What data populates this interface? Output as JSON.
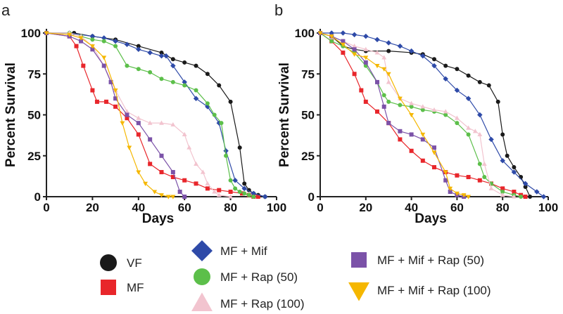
{
  "panels": [
    {
      "label": "a",
      "chart_data": {
        "type": "line",
        "xlabel": "Days",
        "ylabel": "Percent Survival",
        "xlim": [
          0,
          100
        ],
        "ylim": [
          0,
          100
        ],
        "xticks": [
          0,
          20,
          40,
          60,
          80,
          100
        ],
        "yticks": [
          0,
          25,
          50,
          75,
          100
        ],
        "series": [
          {
            "name": "VF",
            "x": [
              0,
              12,
              20,
              30,
              40,
              50,
              55,
              60,
              65,
              70,
              75,
              80,
              84,
              86,
              88,
              90,
              92,
              95
            ],
            "y": [
              100,
              100,
              98,
              96,
              92,
              88,
              84,
              82,
              80,
              75,
              68,
              58,
              30,
              8,
              4,
              2,
              1,
              0
            ]
          },
          {
            "name": "MF",
            "x": [
              0,
              10,
              13,
              16,
              20,
              22,
              26,
              30,
              35,
              40,
              45,
              50,
              55,
              60,
              65,
              70,
              75,
              80,
              85,
              88,
              90,
              92
            ],
            "y": [
              100,
              98,
              92,
              80,
              65,
              58,
              58,
              55,
              48,
              38,
              20,
              15,
              12,
              10,
              8,
              5,
              4,
              3,
              2,
              1,
              0,
              0
            ]
          },
          {
            "name": "MF + Mif",
            "x": [
              0,
              10,
              20,
              25,
              30,
              35,
              40,
              45,
              50,
              52,
              55,
              60,
              65,
              70,
              75,
              78,
              82,
              86,
              90,
              95
            ],
            "y": [
              100,
              100,
              98,
              97,
              95,
              93,
              90,
              88,
              86,
              86,
              80,
              70,
              60,
              55,
              45,
              28,
              10,
              5,
              2,
              0
            ]
          },
          {
            "name": "MF + Rap (50)",
            "x": [
              0,
              10,
              15,
              20,
              25,
              30,
              35,
              40,
              45,
              50,
              55,
              60,
              65,
              70,
              73,
              76,
              78,
              80,
              82,
              84,
              86,
              88,
              90
            ],
            "y": [
              100,
              100,
              98,
              96,
              95,
              92,
              80,
              78,
              76,
              72,
              70,
              68,
              65,
              57,
              50,
              45,
              25,
              10,
              5,
              3,
              2,
              1,
              0
            ]
          },
          {
            "name": "MF + Rap (100)",
            "x": [
              0,
              10,
              15,
              20,
              25,
              30,
              35,
              40,
              45,
              50,
              55,
              60,
              62,
              65,
              68,
              70,
              73,
              75,
              80
            ],
            "y": [
              100,
              100,
              98,
              92,
              80,
              65,
              52,
              48,
              45,
              45,
              44,
              38,
              30,
              20,
              15,
              8,
              3,
              1,
              0
            ]
          },
          {
            "name": "MF + Mif + Rap (50)",
            "x": [
              0,
              10,
              15,
              20,
              25,
              28,
              30,
              35,
              40,
              45,
              50,
              55,
              58,
              60
            ],
            "y": [
              100,
              98,
              95,
              90,
              80,
              70,
              60,
              50,
              45,
              35,
              25,
              15,
              3,
              0
            ]
          },
          {
            "name": "MF + Mif + Rap (100)",
            "x": [
              0,
              10,
              15,
              20,
              25,
              30,
              33,
              36,
              40,
              43,
              47,
              50,
              53,
              55
            ],
            "y": [
              100,
              99,
              97,
              92,
              85,
              65,
              45,
              30,
              15,
              8,
              3,
              1,
              0,
              0
            ]
          }
        ]
      }
    },
    {
      "label": "b",
      "chart_data": {
        "type": "line",
        "xlabel": "Days",
        "ylabel": "Percent Survival",
        "xlim": [
          0,
          100
        ],
        "ylim": [
          0,
          100
        ],
        "xticks": [
          0,
          20,
          40,
          60,
          80,
          100
        ],
        "yticks": [
          0,
          25,
          50,
          75,
          100
        ],
        "series": [
          {
            "name": "VF",
            "x": [
              0,
              5,
              10,
              15,
              20,
              30,
              40,
              45,
              50,
              55,
              60,
              65,
              70,
              74,
              78,
              80,
              82,
              85,
              88,
              90,
              92
            ],
            "y": [
              100,
              98,
              92,
              90,
              89,
              89,
              88,
              87,
              84,
              80,
              78,
              74,
              70,
              68,
              58,
              38,
              25,
              18,
              12,
              6,
              0
            ]
          },
          {
            "name": "MF",
            "x": [
              0,
              5,
              10,
              15,
              18,
              20,
              25,
              30,
              35,
              40,
              45,
              50,
              55,
              60,
              65,
              70,
              75,
              80,
              85,
              88,
              90
            ],
            "y": [
              100,
              95,
              88,
              75,
              65,
              58,
              52,
              45,
              35,
              28,
              22,
              18,
              15,
              13,
              12,
              10,
              8,
              5,
              3,
              1,
              0
            ]
          },
          {
            "name": "MF + Mif",
            "x": [
              0,
              5,
              10,
              15,
              20,
              25,
              30,
              35,
              40,
              45,
              50,
              55,
              60,
              65,
              70,
              75,
              80,
              85,
              90,
              95,
              98
            ],
            "y": [
              100,
              100,
              100,
              99,
              98,
              96,
              94,
              92,
              89,
              86,
              80,
              72,
              65,
              60,
              50,
              35,
              22,
              15,
              8,
              3,
              0
            ]
          },
          {
            "name": "MF + Rap (50)",
            "x": [
              0,
              5,
              10,
              15,
              20,
              25,
              28,
              30,
              35,
              40,
              45,
              50,
              55,
              60,
              65,
              70,
              72,
              75,
              80,
              85,
              88
            ],
            "y": [
              100,
              95,
              92,
              88,
              80,
              70,
              62,
              58,
              56,
              55,
              53,
              52,
              50,
              45,
              38,
              20,
              12,
              8,
              3,
              1,
              0
            ]
          },
          {
            "name": "MF + Rap (100)",
            "x": [
              0,
              5,
              10,
              15,
              20,
              25,
              28,
              30,
              35,
              40,
              45,
              50,
              55,
              60,
              65,
              68,
              70,
              72,
              75,
              80,
              85
            ],
            "y": [
              100,
              98,
              95,
              92,
              90,
              88,
              85,
              70,
              60,
              57,
              55,
              53,
              52,
              48,
              42,
              40,
              38,
              20,
              5,
              1,
              0
            ]
          },
          {
            "name": "MF + Mif + Rap (50)",
            "x": [
              0,
              5,
              10,
              15,
              20,
              25,
              28,
              30,
              35,
              40,
              45,
              50,
              55,
              57,
              60,
              63
            ],
            "y": [
              100,
              98,
              95,
              90,
              82,
              70,
              55,
              45,
              40,
              38,
              35,
              30,
              10,
              3,
              1,
              0
            ]
          },
          {
            "name": "MF + Mif + Rap (100)",
            "x": [
              0,
              5,
              10,
              15,
              20,
              25,
              28,
              30,
              35,
              40,
              45,
              50,
              55,
              57,
              60,
              63,
              65
            ],
            "y": [
              100,
              98,
              93,
              87,
              85,
              80,
              78,
              75,
              60,
              50,
              38,
              27,
              15,
              5,
              2,
              1,
              0
            ]
          }
        ]
      }
    }
  ],
  "legend": [
    {
      "name": "VF",
      "marker": "circle",
      "color": "#1a1a1a"
    },
    {
      "name": "MF",
      "marker": "square",
      "color": "#e8262b"
    },
    {
      "name": "MF + Mif",
      "marker": "diamond",
      "color": "#2e4aa8"
    },
    {
      "name": "MF + Rap (50)",
      "marker": "circle",
      "color": "#5cbf4a"
    },
    {
      "name": "MF + Rap (100)",
      "marker": "triangle-up",
      "color": "#f2c4cf"
    },
    {
      "name": "MF + Mif + Rap (50)",
      "marker": "square",
      "color": "#7b52a8"
    },
    {
      "name": "MF + Mif + Rap (100)",
      "marker": "triangle-down",
      "color": "#f5b700"
    }
  ],
  "series_style": {
    "VF": {
      "marker": "circle",
      "color": "#1a1a1a"
    },
    "MF": {
      "marker": "square",
      "color": "#e8262b"
    },
    "MF + Mif": {
      "marker": "diamond",
      "color": "#2e4aa8"
    },
    "MF + Rap (50)": {
      "marker": "circle",
      "color": "#5cbf4a"
    },
    "MF + Rap (100)": {
      "marker": "triangle-up",
      "color": "#f2c4cf"
    },
    "MF + Mif + Rap (50)": {
      "marker": "square",
      "color": "#7b52a8"
    },
    "MF + Mif + Rap (100)": {
      "marker": "triangle-down",
      "color": "#f5b700"
    }
  }
}
